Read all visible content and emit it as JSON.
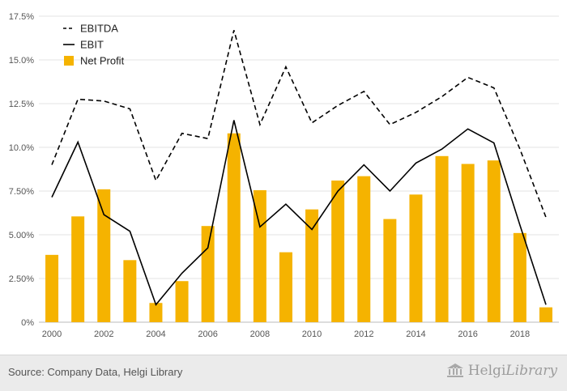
{
  "chart_data": {
    "type": "bar",
    "x": [
      2000,
      2001,
      2002,
      2003,
      2004,
      2005,
      2006,
      2007,
      2008,
      2009,
      2010,
      2011,
      2012,
      2013,
      2014,
      2015,
      2016,
      2017,
      2018,
      2019
    ],
    "x_tick_labels": [
      "2000",
      "2002",
      "2004",
      "2006",
      "2008",
      "2010",
      "2012",
      "2014",
      "2016",
      "2018"
    ],
    "y_tick_labels": [
      "0%",
      "2.50%",
      "5.00%",
      "7.50%",
      "10.0%",
      "12.5%",
      "15.0%",
      "17.5%"
    ],
    "ylim": [
      0,
      17.5
    ],
    "y_unit": "%",
    "grid": "horizontal",
    "legend_position": "top-left",
    "series": [
      {
        "name": "EBITDA",
        "kind": "line",
        "style": "dashed",
        "color": "#000000",
        "values": [
          9.0,
          12.75,
          12.65,
          12.2,
          8.1,
          10.8,
          10.5,
          16.7,
          11.3,
          14.6,
          11.4,
          12.4,
          13.2,
          11.3,
          12.0,
          12.9,
          14.0,
          13.4,
          9.9,
          6.0
        ]
      },
      {
        "name": "EBIT",
        "kind": "line",
        "style": "solid",
        "color": "#000000",
        "values": [
          7.15,
          10.3,
          6.15,
          5.2,
          1.0,
          2.8,
          4.25,
          11.55,
          5.45,
          6.75,
          5.3,
          7.5,
          9.0,
          7.5,
          9.1,
          9.9,
          11.05,
          10.25,
          5.55,
          1.0
        ]
      },
      {
        "name": "Net Profit",
        "kind": "bar",
        "color": "#f5b300",
        "values": [
          3.85,
          6.05,
          7.6,
          3.55,
          1.1,
          2.35,
          5.5,
          10.8,
          7.55,
          4.0,
          6.45,
          8.1,
          8.35,
          5.9,
          7.3,
          9.5,
          9.05,
          9.25,
          5.1,
          0.85
        ]
      }
    ]
  },
  "footer": {
    "source": "Source: Company Data, Helgi Library",
    "brand_left": "Helgi",
    "brand_right": "Library"
  }
}
